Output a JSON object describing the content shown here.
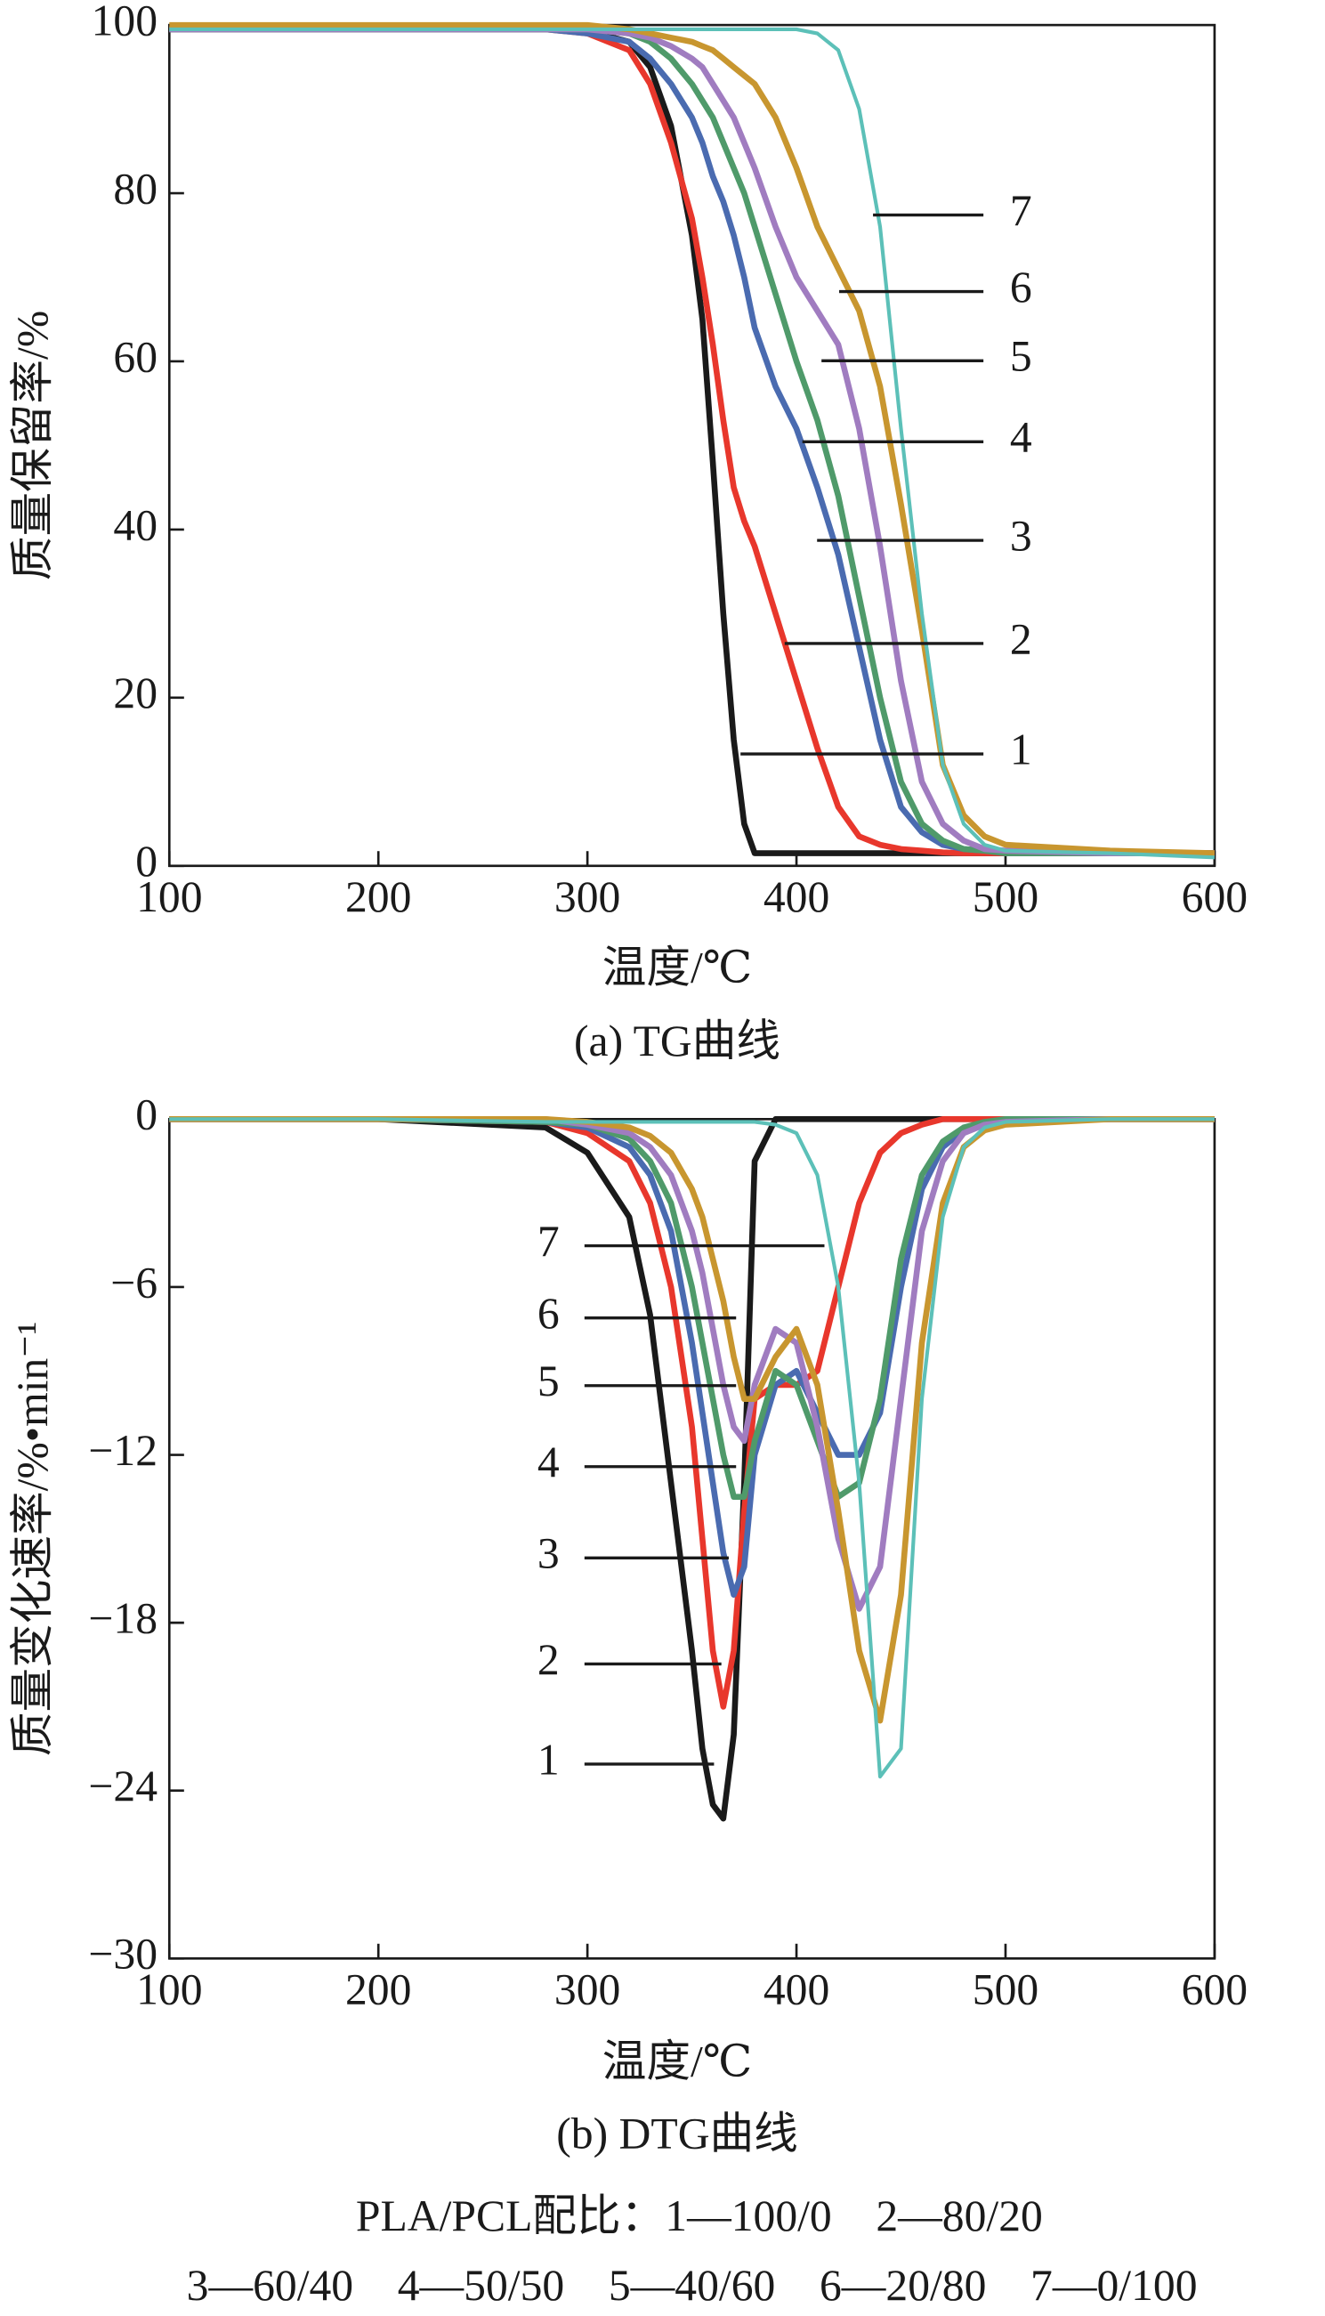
{
  "chart_data": [
    {
      "type": "line",
      "xlabel": "温度/℃",
      "ylabel": "质量保留率/%",
      "caption": "(a) TG曲线",
      "xlim": [
        100,
        600
      ],
      "xticks": [
        100,
        200,
        300,
        400,
        500,
        600
      ],
      "ylim": [
        0,
        100
      ],
      "yticks": [
        0,
        20,
        40,
        60,
        80,
        100
      ],
      "x": [
        100,
        200,
        280,
        300,
        320,
        330,
        340,
        350,
        355,
        360,
        365,
        370,
        375,
        380,
        390,
        400,
        410,
        420,
        430,
        440,
        450,
        460,
        470,
        480,
        490,
        500,
        550,
        600
      ],
      "series": [
        {
          "name": "1",
          "color": "#1a1a1a",
          "values": [
            99.5,
            99.5,
            99.5,
            99.3,
            98,
            95,
            88,
            75,
            65,
            48,
            30,
            15,
            5,
            1.5,
            1.5,
            1.5,
            1.5,
            1.5,
            1.5,
            1.5,
            1.5,
            1.5,
            1.5,
            1.5,
            1.5,
            1.5,
            1.5,
            1.5
          ]
        },
        {
          "name": "2",
          "color": "#e8372c",
          "values": [
            99.5,
            99.5,
            99.5,
            99,
            97,
            93,
            86,
            77,
            70,
            62,
            53,
            45,
            41,
            38,
            30,
            22,
            14,
            7,
            3.5,
            2.5,
            2,
            1.8,
            1.6,
            1.5,
            1.5,
            1.5,
            1.5,
            1.5
          ]
        },
        {
          "name": "3",
          "color": "#4a6bb0",
          "values": [
            99.5,
            99.5,
            99.5,
            99,
            98,
            96,
            93,
            89,
            86,
            82,
            79,
            75,
            70,
            64,
            57,
            52,
            45,
            37,
            26,
            15,
            7,
            4,
            2.5,
            2,
            1.8,
            1.5,
            1.5,
            1.5
          ]
        },
        {
          "name": "4",
          "color": "#4f9a6a",
          "values": [
            99.5,
            99.5,
            99.5,
            99.5,
            99,
            98,
            96,
            93,
            91,
            89,
            86,
            83,
            80,
            76,
            68,
            60,
            53,
            44,
            32,
            20,
            10,
            5,
            3,
            2,
            1.8,
            1.5,
            1.5,
            1.5
          ]
        },
        {
          "name": "5",
          "color": "#a07cc0",
          "values": [
            99.5,
            99.5,
            99.5,
            99.5,
            99,
            98.5,
            97.5,
            96,
            95,
            93,
            91,
            89,
            86,
            83,
            76,
            70,
            66,
            62,
            52,
            38,
            22,
            10,
            5,
            3,
            2,
            1.8,
            1.5,
            1.5
          ]
        },
        {
          "name": "6",
          "color": "#c8962f",
          "values": [
            100,
            100,
            100,
            100,
            99.5,
            99,
            98.5,
            98,
            97.5,
            97,
            96,
            95,
            94,
            93,
            89,
            83,
            76,
            71,
            66,
            57,
            43,
            28,
            12,
            6,
            3.5,
            2.5,
            1.8,
            1.5
          ]
        },
        {
          "name": "7",
          "color": "#5cc0b8",
          "values": [
            99.5,
            99.5,
            99.5,
            99.5,
            99.5,
            99.5,
            99.5,
            99.5,
            99.5,
            99.5,
            99.5,
            99.5,
            99.5,
            99.5,
            99.5,
            99.5,
            99,
            97,
            90,
            76,
            52,
            30,
            12,
            5,
            2.5,
            1.8,
            1.5,
            1
          ]
        }
      ]
    },
    {
      "type": "line",
      "xlabel": "温度/℃",
      "ylabel": "质量变化速率/%•min⁻¹",
      "caption": "(b) DTG曲线",
      "xlim": [
        100,
        600
      ],
      "xticks": [
        100,
        200,
        300,
        400,
        500,
        600
      ],
      "ylim": [
        -30,
        0
      ],
      "yticks": [
        {
          "value": -30,
          "label": "−30"
        },
        {
          "value": -24,
          "label": "−24"
        },
        {
          "value": -18,
          "label": "−18"
        },
        {
          "value": -12,
          "label": "−12"
        },
        {
          "value": -6,
          "label": "−6"
        },
        0
      ],
      "x": [
        100,
        200,
        280,
        300,
        320,
        330,
        340,
        350,
        355,
        360,
        365,
        370,
        375,
        380,
        390,
        400,
        410,
        420,
        430,
        440,
        450,
        460,
        470,
        480,
        490,
        500,
        550,
        600
      ],
      "series": [
        {
          "name": "1",
          "color": "#1a1a1a",
          "values": [
            0,
            0,
            -0.3,
            -1.2,
            -3.5,
            -7,
            -13,
            -19,
            -22.5,
            -24.5,
            -25,
            -22,
            -13,
            -1.5,
            0,
            0,
            0,
            0,
            0,
            0,
            0,
            0,
            0,
            0,
            0,
            0,
            0,
            0
          ]
        },
        {
          "name": "2",
          "color": "#e8372c",
          "values": [
            0,
            0,
            -0.1,
            -0.5,
            -1.5,
            -3,
            -6,
            -11,
            -15,
            -19,
            -21,
            -19,
            -14,
            -10,
            -9.5,
            -9.5,
            -9,
            -6,
            -3,
            -1.2,
            -0.5,
            -0.2,
            0,
            0,
            0,
            0,
            0,
            0
          ]
        },
        {
          "name": "3",
          "color": "#4a6bb0",
          "values": [
            0,
            0,
            -0.1,
            -0.3,
            -1,
            -2,
            -4,
            -8,
            -10.5,
            -13,
            -15.5,
            -17,
            -16,
            -12,
            -9.5,
            -9,
            -10.5,
            -12,
            -12,
            -10.5,
            -6,
            -2.5,
            -1,
            -0.4,
            -0.2,
            -0.1,
            0,
            0
          ]
        },
        {
          "name": "4",
          "color": "#4f9a6a",
          "values": [
            0,
            0,
            -0.1,
            -0.2,
            -0.7,
            -1.5,
            -3,
            -6,
            -8,
            -10,
            -12,
            -13.5,
            -13.5,
            -11.5,
            -9,
            -9.5,
            -11.5,
            -13.5,
            -13,
            -10,
            -5,
            -2,
            -0.8,
            -0.3,
            -0.1,
            0,
            0,
            0
          ]
        },
        {
          "name": "5",
          "color": "#a07cc0",
          "values": [
            0,
            0,
            0,
            -0.2,
            -0.5,
            -1,
            -2,
            -4,
            -5.5,
            -7.5,
            -9.5,
            -11,
            -11.5,
            -9.5,
            -7.5,
            -8,
            -11,
            -15,
            -17.5,
            -16,
            -10,
            -4,
            -1.5,
            -0.5,
            -0.2,
            -0.1,
            0,
            0
          ]
        },
        {
          "name": "6",
          "color": "#c8962f",
          "values": [
            0,
            0,
            0,
            -0.1,
            -0.3,
            -0.6,
            -1.2,
            -2.5,
            -3.5,
            -5,
            -6.5,
            -8.5,
            -10,
            -10,
            -8.5,
            -7.5,
            -9.5,
            -14,
            -19,
            -21.5,
            -17,
            -8,
            -3,
            -1,
            -0.4,
            -0.2,
            0,
            0
          ]
        },
        {
          "name": "7",
          "color": "#5cc0b8",
          "values": [
            0,
            0,
            -0.1,
            -0.1,
            -0.1,
            -0.1,
            -0.1,
            -0.1,
            -0.1,
            -0.1,
            -0.1,
            -0.1,
            -0.1,
            -0.1,
            -0.2,
            -0.5,
            -2,
            -6,
            -13,
            -23.5,
            -22.5,
            -10,
            -3.5,
            -1,
            -0.3,
            -0.1,
            0,
            0
          ]
        }
      ]
    }
  ],
  "footnote": [
    "PLA/PCL配比：1—100/0　2—80/20",
    "3—60/40　4—50/50　5—40/60　6—20/80　7—0/100"
  ]
}
